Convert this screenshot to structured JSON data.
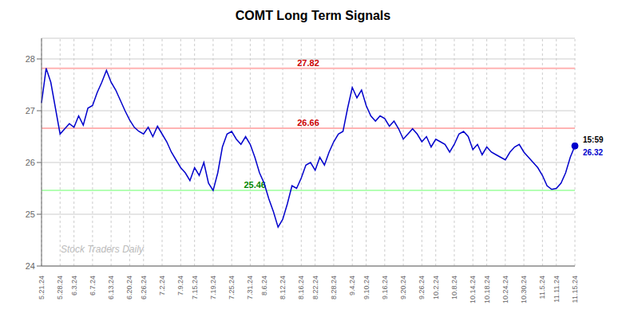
{
  "chart_data": {
    "type": "line",
    "title": "COMT Long Term Signals",
    "watermark": "Stock Traders Daily",
    "color": "#0000cc",
    "ylim": [
      24.0,
      28.4
    ],
    "yticks": [
      24,
      25,
      26,
      27,
      28
    ],
    "grid": true,
    "categories": [
      "5.21.24",
      null,
      null,
      null,
      "5.28.24",
      null,
      null,
      "6.3.24",
      null,
      null,
      null,
      "6.7.24",
      null,
      null,
      null,
      "6.13.24",
      null,
      null,
      null,
      "6.20.24",
      null,
      null,
      "6.26.24",
      null,
      null,
      null,
      "7.2.24",
      null,
      null,
      null,
      "7.9.24",
      null,
      null,
      "7.15.24",
      null,
      null,
      null,
      "7.19.24",
      null,
      null,
      null,
      "7.25.24",
      null,
      null,
      null,
      "7.31.24",
      null,
      null,
      "8.6.24",
      null,
      null,
      null,
      "8.12.24",
      null,
      null,
      null,
      "8.16.24",
      null,
      null,
      "8.22.24",
      null,
      null,
      null,
      "8.28.24",
      null,
      null,
      null,
      "9.4.24",
      null,
      null,
      "9.10.24",
      null,
      null,
      null,
      "9.16.24",
      null,
      null,
      null,
      "9.20.24",
      null,
      null,
      null,
      "9.26.24",
      null,
      null,
      "10.2.24",
      null,
      null,
      null,
      "10.8.24",
      null,
      null,
      null,
      "10.14.24",
      null,
      null,
      "10.18.24",
      null,
      null,
      null,
      "10.24.24",
      null,
      null,
      null,
      "10.30.24",
      null,
      null,
      null,
      "11.5.24",
      null,
      null,
      "11.11.24",
      null,
      null,
      null,
      "11.15.24"
    ],
    "values": [
      27.15,
      27.82,
      27.55,
      27.05,
      26.55,
      26.65,
      26.75,
      26.68,
      26.9,
      26.72,
      27.05,
      27.1,
      27.35,
      27.55,
      27.78,
      27.55,
      27.4,
      27.2,
      27.0,
      26.82,
      26.68,
      26.6,
      26.55,
      26.68,
      26.5,
      26.7,
      26.55,
      26.4,
      26.2,
      26.05,
      25.9,
      25.8,
      25.65,
      25.9,
      25.75,
      26.0,
      25.6,
      25.46,
      25.8,
      26.3,
      26.55,
      26.6,
      26.45,
      26.35,
      26.5,
      26.35,
      26.1,
      25.8,
      25.6,
      25.3,
      25.05,
      24.75,
      24.9,
      25.2,
      25.55,
      25.5,
      25.7,
      25.95,
      26.0,
      25.85,
      26.1,
      25.95,
      26.2,
      26.4,
      26.55,
      26.6,
      27.05,
      27.45,
      27.25,
      27.4,
      27.1,
      26.9,
      26.8,
      26.9,
      26.85,
      26.7,
      26.8,
      26.65,
      26.45,
      26.55,
      26.65,
      26.55,
      26.4,
      26.5,
      26.3,
      26.45,
      26.4,
      26.35,
      26.2,
      26.35,
      26.55,
      26.6,
      26.5,
      26.25,
      26.35,
      26.15,
      26.3,
      26.2,
      26.15,
      26.1,
      26.05,
      26.2,
      26.3,
      26.35,
      26.2,
      26.1,
      26.0,
      25.9,
      25.75,
      25.55,
      25.48,
      25.5,
      25.6,
      25.8,
      26.1,
      26.32
    ],
    "hlines": [
      {
        "value": 27.82,
        "label": "27.82",
        "color": "#ffb3b3",
        "label_color": "#cc0000"
      },
      {
        "value": 26.66,
        "label": "26.66",
        "color": "#ffb3b3",
        "label_color": "#cc0000"
      },
      {
        "value": 25.46,
        "label": "25.46",
        "color": "#b3ffb3",
        "label_color": "#008800"
      }
    ],
    "annotations": [
      {
        "text": "15:59"
      },
      {
        "text": "26.32",
        "value": 26.32
      }
    ]
  }
}
